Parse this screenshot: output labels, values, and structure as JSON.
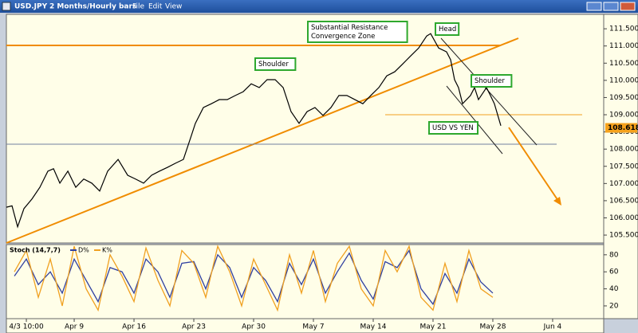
{
  "window": {
    "title": "USD.JPY",
    "subtitle": "2 Months/Hourly bars",
    "menu": [
      "File",
      "Edit",
      "View"
    ]
  },
  "chart_data": [
    {
      "type": "line",
      "color": "#000000",
      "x": [
        -1.67,
        -1.2,
        -0.73,
        -0.2,
        0.47,
        1.13,
        1.8,
        2.27,
        2.8,
        3.47,
        4.13,
        4.8,
        5.47,
        6.13,
        6.8,
        7.67,
        8.47,
        9.13,
        9.8,
        10.47,
        11.13,
        11.8,
        12.47,
        13.13,
        13.8,
        14.13,
        14.8,
        15.47,
        16.13,
        16.8,
        17.47,
        18.13,
        18.8,
        19.47,
        20.13,
        20.8,
        21.47,
        22.13,
        22.8,
        23.47,
        24.13,
        24.8,
        25.47,
        26.13,
        26.8,
        27.47,
        28.13,
        28.8,
        29.47,
        30.13,
        30.8,
        31.47,
        32.13,
        32.8,
        33.47,
        33.8,
        34.47,
        35.13,
        35.47,
        35.8,
        36.13,
        36.47,
        37.13,
        37.47,
        37.8,
        38.47,
        38.8,
        39.13,
        39.67
      ],
      "values": [
        106.31,
        106.35,
        105.74,
        106.27,
        106.55,
        106.89,
        107.36,
        107.43,
        107.01,
        107.36,
        106.89,
        107.13,
        107.01,
        106.78,
        107.36,
        107.7,
        107.24,
        107.13,
        107.01,
        107.24,
        107.36,
        107.47,
        107.59,
        107.7,
        108.4,
        108.75,
        109.21,
        109.32,
        109.44,
        109.44,
        109.56,
        109.67,
        109.9,
        109.79,
        110.02,
        110.02,
        109.79,
        109.09,
        108.75,
        109.09,
        109.21,
        108.98,
        109.21,
        109.56,
        109.56,
        109.44,
        109.32,
        109.56,
        109.79,
        110.13,
        110.25,
        110.48,
        110.71,
        110.94,
        111.29,
        111.36,
        110.94,
        110.83,
        110.6,
        110.02,
        109.79,
        109.32,
        109.56,
        109.79,
        109.44,
        109.79,
        109.56,
        109.32,
        108.68
      ],
      "xlim": [
        -1.67,
        48.27
      ],
      "ylim": [
        105.27,
        111.92
      ],
      "yticks": [
        {
          "value": 105.5,
          "label": "105.500"
        },
        {
          "value": 106,
          "label": "106.000"
        },
        {
          "value": 106.5,
          "label": "106.500"
        },
        {
          "value": 107,
          "label": "107.000"
        },
        {
          "value": 107.5,
          "label": "107.500"
        },
        {
          "value": 108,
          "label": "108.000"
        },
        {
          "value": 108.5,
          "label": "108.500"
        },
        {
          "value": 109,
          "label": "109.000"
        },
        {
          "value": 109.5,
          "label": "109.500"
        },
        {
          "value": 110,
          "label": "110.000"
        },
        {
          "value": 110.5,
          "label": "110.500"
        },
        {
          "value": 111,
          "label": "111.000"
        },
        {
          "value": 111.5,
          "label": "111.500"
        }
      ],
      "last_price": 108.618,
      "annotations": [
        [
          "Substantial Resistance",
          "Convergence Zone"
        ],
        [
          "Shoulder"
        ],
        [
          "Head"
        ],
        [
          "Shoulder"
        ],
        [
          "USD VS YEN"
        ]
      ]
    },
    {
      "type": "line",
      "title": "Stoch (14,7,7)",
      "x": [
        -1,
        0,
        1,
        2,
        3,
        4,
        5,
        6,
        7,
        8,
        9,
        10,
        11,
        12,
        13,
        14,
        15,
        16,
        17,
        18,
        19,
        20,
        21,
        22,
        23,
        24,
        25,
        26,
        27,
        28,
        29,
        30,
        31,
        32,
        33,
        34,
        35,
        36,
        37,
        38,
        39
      ],
      "series": [
        {
          "name": "D%",
          "color": "#3040a0",
          "values": [
            55,
            75,
            45,
            60,
            35,
            75,
            50,
            25,
            65,
            60,
            35,
            75,
            60,
            30,
            70,
            72,
            40,
            80,
            65,
            30,
            65,
            50,
            25,
            70,
            45,
            75,
            35,
            60,
            82,
            50,
            28,
            72,
            65,
            85,
            40,
            22,
            58,
            35,
            75,
            48,
            35
          ]
        },
        {
          "name": "K%",
          "color": "#f0a020",
          "values": [
            60,
            85,
            30,
            75,
            20,
            90,
            40,
            15,
            80,
            55,
            25,
            88,
            50,
            20,
            85,
            70,
            30,
            90,
            60,
            20,
            75,
            45,
            15,
            80,
            35,
            85,
            25,
            70,
            90,
            40,
            20,
            85,
            60,
            90,
            30,
            15,
            70,
            25,
            85,
            40,
            30
          ]
        }
      ],
      "xlim": [
        -1.67,
        48.27
      ],
      "ylim": [
        5,
        92
      ],
      "yticks": [
        20,
        40,
        60,
        80
      ],
      "xticks": [
        {
          "value": 0,
          "label": "4/3 10:00"
        },
        {
          "value": 4,
          "label": "Apr 9"
        },
        {
          "value": 9,
          "label": "Apr 16"
        },
        {
          "value": 14,
          "label": "Apr 23"
        },
        {
          "value": 19,
          "label": "Apr 30"
        },
        {
          "value": 24,
          "label": "May 7"
        },
        {
          "value": 29,
          "label": "May 14"
        },
        {
          "value": 34,
          "label": "May 21"
        },
        {
          "value": 39,
          "label": "May 28"
        },
        {
          "value": 44,
          "label": "Jun 4"
        }
      ]
    }
  ]
}
